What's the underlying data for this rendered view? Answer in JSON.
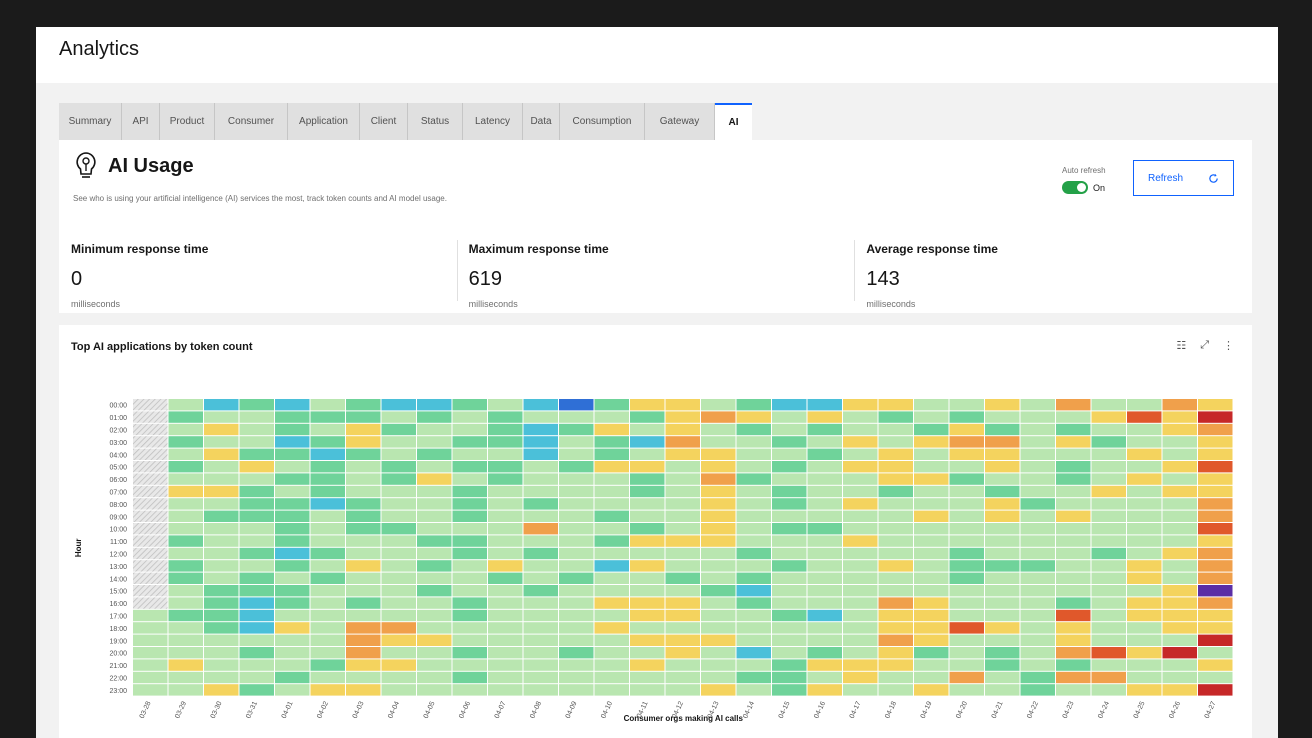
{
  "app": {
    "title": "Analytics"
  },
  "tabs": [
    {
      "label": "Summary",
      "active": false
    },
    {
      "label": "API",
      "active": false
    },
    {
      "label": "Product",
      "active": false
    },
    {
      "label": "Consumer",
      "active": false
    },
    {
      "label": "Application",
      "active": false
    },
    {
      "label": "Client",
      "active": false
    },
    {
      "label": "Status",
      "active": false
    },
    {
      "label": "Latency",
      "active": false
    },
    {
      "label": "Data",
      "active": false
    },
    {
      "label": "Consumption",
      "active": false
    },
    {
      "label": "Gateway",
      "active": false
    },
    {
      "label": "AI",
      "active": true
    }
  ],
  "ai_usage": {
    "title": "AI Usage",
    "description": "See who is using your artificial intelligence (AI) services the most, track token counts and AI model usage.",
    "icon": "lightbulb-ai-icon",
    "auto_refresh_label": "Auto refresh",
    "auto_refresh_state": "On",
    "refresh_label": "Refresh"
  },
  "stats": [
    {
      "label": "Minimum response time",
      "value": "0",
      "unit": "milliseconds"
    },
    {
      "label": "Maximum response time",
      "value": "619",
      "unit": "milliseconds"
    },
    {
      "label": "Average response time",
      "value": "143",
      "unit": "milliseconds"
    }
  ],
  "chart_data": {
    "type": "heatmap",
    "title": "Top AI applications by token count",
    "xlabel": "Consumer orgs making AI calls",
    "ylabel": "Hour",
    "x_categories": [
      "03-28",
      "03-29",
      "03-30",
      "03-31",
      "04-01",
      "04-02",
      "04-03",
      "04-04",
      "04-05",
      "04-06",
      "04-07",
      "04-08",
      "04-09",
      "04-10",
      "04-11",
      "04-12",
      "04-13",
      "04-14",
      "04-15",
      "04-16",
      "04-17",
      "04-18",
      "04-19",
      "04-20",
      "04-21",
      "04-22",
      "04-23",
      "04-24",
      "04-25",
      "04-26",
      "04-27"
    ],
    "y_categories": [
      "00:00",
      "01:00",
      "02:00",
      "03:00",
      "04:00",
      "05:00",
      "06:00",
      "07:00",
      "08:00",
      "09:00",
      "10:00",
      "11:00",
      "12:00",
      "13:00",
      "14:00",
      "15:00",
      "16:00",
      "17:00",
      "18:00",
      "19:00",
      "20:00",
      "21:00",
      "22:00",
      "23:00"
    ],
    "no_data_cells": {
      "column": "03-28",
      "rows": [
        "00:00",
        "01:00",
        "02:00",
        "03:00",
        "04:00",
        "05:00",
        "06:00",
        "07:00",
        "08:00",
        "09:00",
        "10:00",
        "11:00",
        "12:00",
        "13:00",
        "14:00",
        "15:00",
        "16:00"
      ]
    },
    "color_scale": [
      "#2f6fd6",
      "#4bc0d9",
      "#6fd39a",
      "#b9e6b0",
      "#f4d35e",
      "#f0a04b",
      "#e0582b",
      "#c62828",
      "#5b2ea6"
    ],
    "no_data_color": "#d9d9d9",
    "values": [
      [
        null,
        3,
        1,
        2,
        1,
        3,
        2,
        1,
        1,
        2,
        3,
        1,
        0,
        2,
        4,
        4,
        3,
        2,
        1,
        1,
        4,
        4,
        3,
        3,
        4,
        3,
        5,
        3,
        3,
        5,
        4
      ],
      [
        null,
        2,
        3,
        3,
        2,
        2,
        2,
        3,
        2,
        3,
        2,
        3,
        3,
        3,
        2,
        4,
        5,
        4,
        3,
        4,
        3,
        2,
        3,
        2,
        3,
        3,
        3,
        4,
        6,
        4,
        7
      ],
      [
        null,
        3,
        4,
        3,
        2,
        3,
        4,
        2,
        3,
        3,
        2,
        1,
        2,
        4,
        3,
        4,
        3,
        2,
        3,
        2,
        3,
        3,
        2,
        4,
        2,
        3,
        2,
        3,
        3,
        4,
        5
      ],
      [
        null,
        2,
        3,
        3,
        1,
        2,
        4,
        3,
        3,
        2,
        2,
        1,
        3,
        2,
        1,
        5,
        3,
        3,
        2,
        3,
        4,
        3,
        4,
        5,
        5,
        3,
        4,
        2,
        3,
        3,
        4
      ],
      [
        null,
        3,
        4,
        2,
        2,
        1,
        2,
        3,
        2,
        3,
        3,
        1,
        3,
        2,
        3,
        4,
        4,
        3,
        3,
        2,
        3,
        4,
        3,
        4,
        4,
        3,
        3,
        3,
        4,
        3,
        4
      ],
      [
        null,
        2,
        3,
        4,
        3,
        2,
        3,
        2,
        3,
        2,
        2,
        3,
        2,
        4,
        4,
        3,
        4,
        3,
        2,
        3,
        4,
        4,
        3,
        3,
        4,
        3,
        2,
        3,
        3,
        4,
        6
      ],
      [
        null,
        3,
        3,
        3,
        2,
        2,
        3,
        2,
        4,
        3,
        2,
        3,
        3,
        3,
        2,
        3,
        5,
        2,
        3,
        3,
        3,
        4,
        4,
        2,
        3,
        3,
        2,
        3,
        4,
        3,
        4
      ],
      [
        null,
        4,
        4,
        2,
        3,
        2,
        3,
        3,
        3,
        2,
        3,
        3,
        3,
        3,
        2,
        3,
        4,
        3,
        2,
        3,
        3,
        2,
        3,
        3,
        2,
        3,
        3,
        4,
        3,
        4,
        4
      ],
      [
        null,
        3,
        3,
        2,
        2,
        1,
        2,
        3,
        3,
        2,
        3,
        2,
        3,
        3,
        3,
        3,
        4,
        3,
        2,
        3,
        4,
        3,
        3,
        3,
        4,
        2,
        3,
        3,
        3,
        3,
        5
      ],
      [
        null,
        3,
        2,
        2,
        2,
        3,
        2,
        3,
        3,
        2,
        3,
        3,
        3,
        2,
        3,
        3,
        4,
        3,
        3,
        3,
        3,
        3,
        4,
        3,
        4,
        3,
        4,
        3,
        3,
        3,
        5
      ],
      [
        null,
        3,
        3,
        3,
        2,
        3,
        2,
        2,
        3,
        3,
        3,
        5,
        3,
        3,
        2,
        3,
        4,
        3,
        2,
        2,
        3,
        3,
        3,
        3,
        3,
        3,
        3,
        3,
        3,
        3,
        6
      ],
      [
        null,
        2,
        3,
        3,
        2,
        3,
        3,
        3,
        2,
        2,
        3,
        3,
        3,
        2,
        4,
        4,
        4,
        3,
        3,
        3,
        4,
        3,
        3,
        3,
        3,
        3,
        3,
        3,
        3,
        3,
        4
      ],
      [
        null,
        3,
        3,
        2,
        1,
        2,
        3,
        3,
        3,
        2,
        3,
        2,
        3,
        3,
        3,
        3,
        3,
        2,
        3,
        3,
        3,
        3,
        3,
        2,
        3,
        3,
        3,
        2,
        3,
        4,
        5
      ],
      [
        null,
        2,
        3,
        3,
        2,
        3,
        4,
        3,
        2,
        3,
        4,
        3,
        3,
        1,
        4,
        3,
        3,
        3,
        2,
        3,
        3,
        4,
        3,
        2,
        2,
        2,
        3,
        3,
        4,
        3,
        5
      ],
      [
        null,
        2,
        3,
        2,
        3,
        2,
        3,
        3,
        3,
        3,
        2,
        3,
        2,
        3,
        3,
        2,
        3,
        2,
        3,
        3,
        3,
        3,
        3,
        2,
        3,
        3,
        3,
        3,
        4,
        3,
        5
      ],
      [
        null,
        3,
        2,
        2,
        2,
        3,
        3,
        3,
        2,
        3,
        3,
        2,
        3,
        3,
        3,
        3,
        2,
        1,
        3,
        3,
        3,
        3,
        3,
        3,
        3,
        3,
        3,
        3,
        3,
        4,
        8
      ],
      [
        null,
        3,
        2,
        1,
        2,
        3,
        2,
        3,
        3,
        2,
        3,
        3,
        3,
        4,
        4,
        4,
        3,
        2,
        3,
        3,
        3,
        5,
        4,
        3,
        3,
        3,
        2,
        3,
        4,
        4,
        5
      ],
      [
        3,
        2,
        2,
        1,
        3,
        3,
        3,
        3,
        3,
        2,
        3,
        3,
        3,
        3,
        4,
        4,
        3,
        3,
        2,
        1,
        3,
        4,
        4,
        3,
        3,
        3,
        6,
        3,
        4,
        4,
        4
      ],
      [
        3,
        3,
        2,
        1,
        4,
        3,
        5,
        5,
        3,
        3,
        3,
        3,
        3,
        4,
        3,
        3,
        3,
        3,
        3,
        3,
        3,
        4,
        4,
        6,
        4,
        3,
        4,
        3,
        3,
        4,
        4
      ],
      [
        3,
        3,
        3,
        3,
        3,
        3,
        5,
        4,
        4,
        3,
        3,
        3,
        3,
        3,
        4,
        4,
        4,
        3,
        3,
        3,
        3,
        5,
        4,
        3,
        3,
        3,
        4,
        3,
        3,
        3,
        7
      ],
      [
        3,
        3,
        3,
        2,
        3,
        3,
        5,
        3,
        3,
        2,
        3,
        3,
        2,
        3,
        3,
        4,
        3,
        1,
        3,
        2,
        3,
        4,
        2,
        3,
        2,
        3,
        5,
        6,
        4,
        7,
        3
      ],
      [
        3,
        4,
        3,
        3,
        3,
        2,
        4,
        4,
        3,
        3,
        3,
        3,
        3,
        3,
        4,
        3,
        3,
        3,
        2,
        4,
        4,
        4,
        3,
        3,
        2,
        3,
        2,
        3,
        3,
        3,
        4
      ],
      [
        3,
        3,
        3,
        3,
        2,
        3,
        3,
        3,
        3,
        2,
        3,
        3,
        3,
        3,
        3,
        3,
        3,
        2,
        2,
        3,
        4,
        3,
        3,
        5,
        3,
        2,
        5,
        5,
        3,
        3,
        3
      ],
      [
        3,
        3,
        4,
        2,
        3,
        4,
        4,
        3,
        3,
        3,
        3,
        3,
        3,
        3,
        3,
        3,
        4,
        3,
        2,
        4,
        3,
        3,
        4,
        3,
        3,
        2,
        3,
        3,
        4,
        4,
        7
      ]
    ]
  }
}
